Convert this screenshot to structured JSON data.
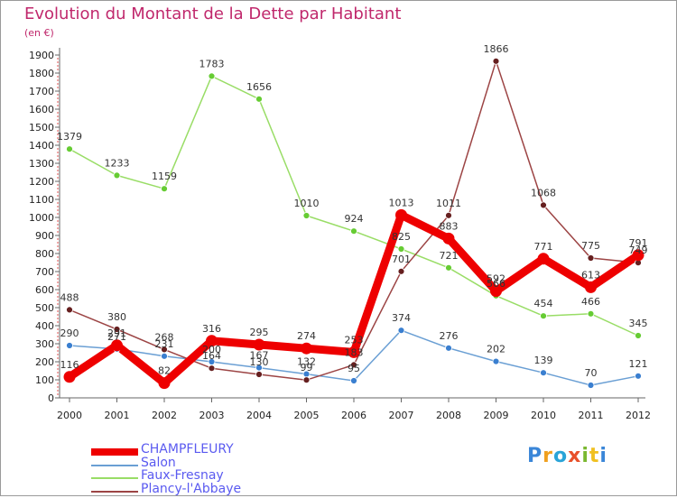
{
  "header": {
    "title": "Evolution du Montant de la Dette par Habitant",
    "subtitle": "(en €)"
  },
  "brand": {
    "logo_text": "Proxiti",
    "logo_colors": [
      "#3a86d8",
      "#f0a020",
      "#2aa4d8",
      "#e8502a",
      "#7ab830",
      "#f0c020",
      "#3a86d8"
    ]
  },
  "chart_data": {
    "type": "line",
    "categories": [
      "2000",
      "2001",
      "2002",
      "2003",
      "2004",
      "2005",
      "2006",
      "2007",
      "2008",
      "2009",
      "2010",
      "2011",
      "2012"
    ],
    "ylim": [
      0,
      1900
    ],
    "yticks": [
      0,
      100,
      200,
      300,
      400,
      500,
      600,
      700,
      800,
      900,
      1000,
      1100,
      1200,
      1300,
      1400,
      1500,
      1600,
      1700,
      1800,
      1900
    ],
    "grid": false,
    "legend_position": "bottom-left",
    "series": [
      {
        "name": "CHAMPFLEURY",
        "color": "#ee0000",
        "emphasis": true,
        "values": [
          116,
          291,
          82,
          316,
          295,
          274,
          253,
          1013,
          883,
          592,
          771,
          613,
          791
        ],
        "labels": [
          "116",
          "291",
          "82",
          "316",
          "295",
          "274",
          "253",
          "1013",
          "883",
          "592",
          "771",
          "613",
          "791"
        ]
      },
      {
        "name": "Salon",
        "color": "#6a9fd4",
        "marker": "#3a7fd0",
        "values": [
          290,
          271,
          231,
          200,
          167,
          132,
          95,
          374,
          276,
          202,
          139,
          70,
          121
        ],
        "labels": [
          "290",
          "271",
          "231",
          "200",
          "167",
          "132",
          "95",
          "374",
          "276",
          "202",
          "139",
          "70",
          "121"
        ]
      },
      {
        "name": "Faux-Fresnay",
        "color": "#99dd66",
        "marker": "#66cc33",
        "values": [
          1379,
          1233,
          1159,
          1783,
          1656,
          1010,
          924,
          825,
          721,
          566,
          454,
          466,
          345
        ],
        "labels": [
          "1379",
          "1233",
          "1159",
          "1783",
          "1656",
          "1010",
          "924",
          "825",
          "721",
          "566",
          "454",
          "466",
          "345"
        ]
      },
      {
        "name": "Plancy-l'Abbaye",
        "color": "#9c4444",
        "marker": "#661f1f",
        "values": [
          488,
          380,
          268,
          164,
          130,
          99,
          183,
          701,
          1011,
          1866,
          1068,
          775,
          749
        ],
        "labels": [
          "488",
          "380",
          "268",
          "164",
          "130",
          "99",
          "183",
          "701",
          "1011",
          "1866",
          "1068",
          "775",
          "749"
        ]
      }
    ]
  }
}
